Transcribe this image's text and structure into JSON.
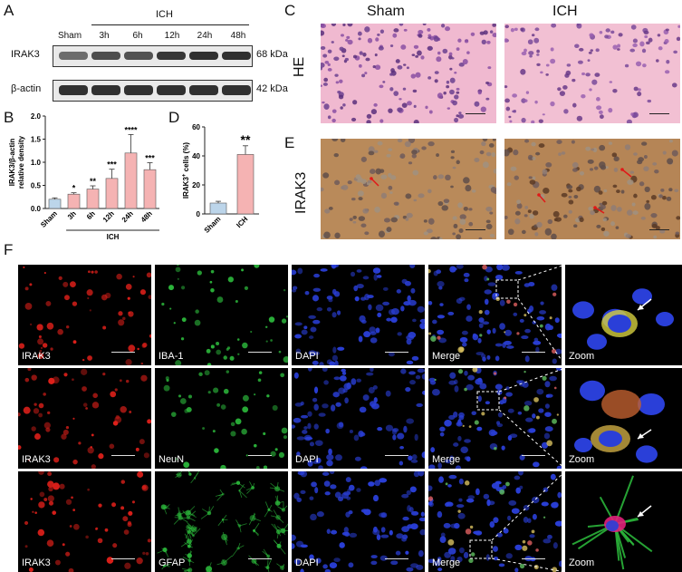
{
  "panels": {
    "A": "A",
    "B": "B",
    "C": "C",
    "D": "D",
    "E": "E",
    "F": "F"
  },
  "blot": {
    "lanes": [
      "Sham",
      "3h",
      "6h",
      "12h",
      "24h",
      "48h"
    ],
    "group": "ICH",
    "rows": [
      {
        "name": "IRAK3",
        "size": "68 kDa",
        "intensity": [
          0.55,
          0.75,
          0.72,
          0.9,
          0.95,
          0.95
        ]
      },
      {
        "name": "β-actin",
        "size": "42 kDa",
        "intensity": [
          0.95,
          0.95,
          0.95,
          0.95,
          0.95,
          0.95
        ]
      }
    ]
  },
  "histo": {
    "columns": [
      "Sham",
      "ICH"
    ],
    "rows": [
      "HE",
      "IRAK3"
    ]
  },
  "fluor": {
    "rows": [
      [
        "IRAK3",
        "IBA-1",
        "DAPI",
        "Merge",
        "Zoom"
      ],
      [
        "IRAK3",
        "NeuN",
        "DAPI",
        "Merge",
        "Zoom"
      ],
      [
        "IRAK3",
        "GFAP",
        "DAPI",
        "Merge",
        "Zoom"
      ]
    ],
    "colors": {
      "red": "#e0201a",
      "green": "#2bb43a",
      "blue": "#2a3fd8"
    }
  },
  "chart_data": [
    {
      "type": "bar",
      "ylabel": "IRAK3/β-actin relative density",
      "categories": [
        "Sham",
        "3h",
        "6h",
        "12h",
        "24h",
        "48h"
      ],
      "group_label": "ICH",
      "values": [
        0.2,
        0.31,
        0.42,
        0.65,
        1.2,
        0.84
      ],
      "errors": [
        0.03,
        0.03,
        0.07,
        0.2,
        0.4,
        0.15
      ],
      "significance": [
        "",
        "*",
        "**",
        "***",
        "****",
        "***"
      ],
      "yticks": [
        "0.0",
        "0.5",
        "1.0",
        "1.5",
        "2.0"
      ],
      "ylim": [
        0,
        2.0
      ],
      "colors": [
        "#bcd5ea",
        "#f5b3b3",
        "#f5b3b3",
        "#f5b3b3",
        "#f5b3b3",
        "#f5b3b3"
      ]
    },
    {
      "type": "bar",
      "ylabel": "IRAK3+ cells (%)",
      "categories": [
        "Sham",
        "ICH"
      ],
      "values": [
        7.5,
        41
      ],
      "errors": [
        1.2,
        6
      ],
      "significance": [
        "",
        "**"
      ],
      "yticks": [
        "0",
        "20",
        "40",
        "60"
      ],
      "ylim": [
        0,
        60
      ],
      "colors": [
        "#bcd5ea",
        "#f5b3b3"
      ]
    }
  ]
}
